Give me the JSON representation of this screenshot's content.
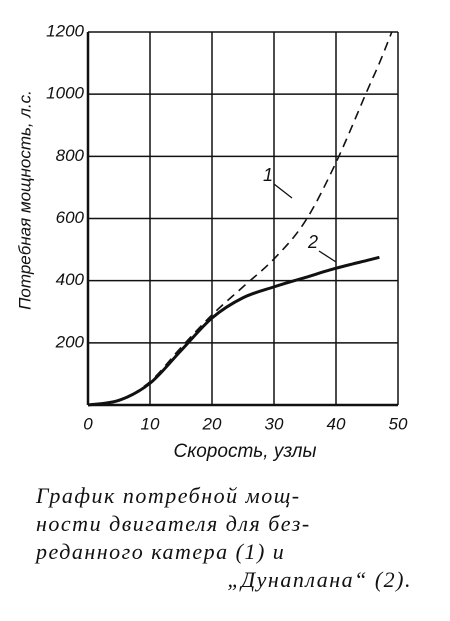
{
  "chart_data": {
    "type": "line",
    "ylabel": "Потребная мощность, л.с.",
    "xlabel": "Скорость, узлы",
    "caption": [
      "График потребной мощ-",
      "ности двигателя для без-",
      "реданного катера (1) и",
      "„Дунаплана“ (2)."
    ],
    "x": [
      0,
      5,
      10,
      15,
      20,
      25,
      30,
      35,
      40,
      45,
      47,
      49
    ],
    "series": [
      {
        "name": "1",
        "color": "#111111",
        "dash": true,
        "values": [
          0,
          15,
          75,
          185,
          290,
          380,
          470,
          590,
          780,
          1010,
          1100,
          1200
        ]
      },
      {
        "name": "2",
        "color": "#111111",
        "dash": false,
        "values": [
          0,
          15,
          70,
          175,
          280,
          345,
          380,
          410,
          440,
          465,
          475,
          null
        ]
      }
    ],
    "xlim": [
      0,
      50
    ],
    "xticks": [
      0,
      10,
      20,
      30,
      40,
      50
    ],
    "ylim": [
      0,
      1200
    ],
    "yticks": [
      200,
      400,
      600,
      800,
      1000,
      1200
    ],
    "grid": true
  }
}
